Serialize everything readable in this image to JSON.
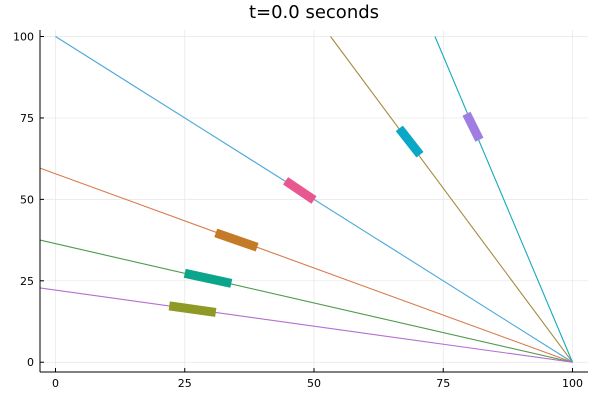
{
  "chart_data": {
    "type": "line",
    "title": "t=0.0 seconds",
    "xlabel": "",
    "ylabel": "",
    "xlim": [
      -3,
      103
    ],
    "ylim": [
      -3,
      102
    ],
    "x_ticks": [
      0,
      25,
      50,
      75,
      100
    ],
    "y_ticks": [
      0,
      25,
      50,
      75,
      100
    ],
    "grid": true,
    "legend": "none",
    "series": [
      {
        "color": "#4aa8d8",
        "x": [
          0,
          100
        ],
        "y": [
          100,
          0
        ]
      },
      {
        "color": "#d97b4a",
        "x": [
          -3,
          100
        ],
        "y": [
          59.6,
          0
        ]
      },
      {
        "color": "#4f9a4a",
        "x": [
          -3,
          100
        ],
        "y": [
          37.5,
          0
        ]
      },
      {
        "color": "#b46fcf",
        "x": [
          -3,
          100
        ],
        "y": [
          22.8,
          0
        ]
      },
      {
        "color": "#a68b3e",
        "x": [
          53.2,
          100
        ],
        "y": [
          100,
          0
        ]
      },
      {
        "color": "#17a9bd",
        "x": [
          73.4,
          100
        ],
        "y": [
          100,
          0
        ]
      }
    ],
    "segments": [
      {
        "color": "#e8578f",
        "x": [
          44.5,
          50.0
        ],
        "y": [
          55.7,
          49.8
        ]
      },
      {
        "color": "#c47a26",
        "x": [
          31.0,
          39.0
        ],
        "y": [
          39.7,
          35.3
        ]
      },
      {
        "color": "#0aa58a",
        "x": [
          25.0,
          34.0
        ],
        "y": [
          27.3,
          24.2
        ]
      },
      {
        "color": "#8e9a24",
        "x": [
          22.0,
          31.0
        ],
        "y": [
          17.3,
          15.3
        ]
      },
      {
        "color": "#0aa7c7",
        "x": [
          66.5,
          70.5
        ],
        "y": [
          71.8,
          63.7
        ]
      },
      {
        "color": "#a07de3",
        "x": [
          79.5,
          82.0
        ],
        "y": [
          76.3,
          68.3
        ]
      }
    ]
  }
}
